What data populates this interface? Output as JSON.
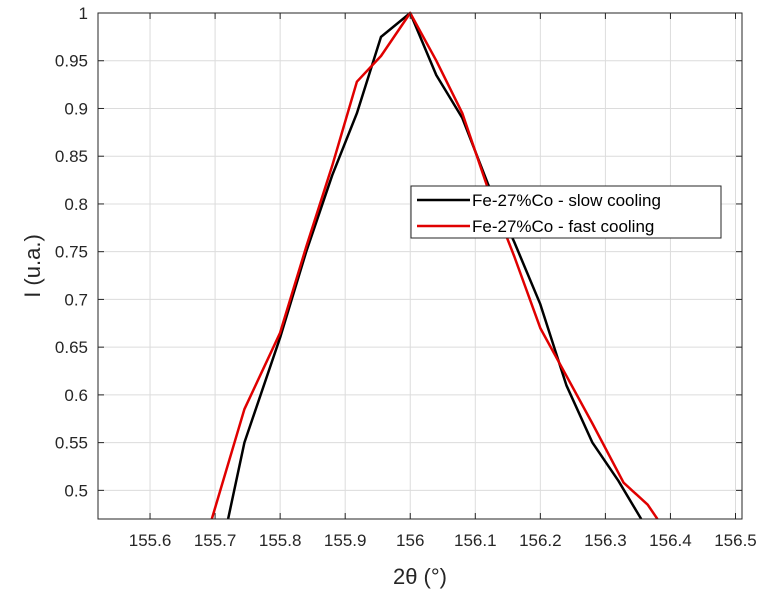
{
  "chart_data": {
    "type": "line",
    "xlabel": "2θ (°)",
    "ylabel": "I (u.a.)",
    "xlim": [
      155.52,
      156.51
    ],
    "ylim": [
      0.47,
      1.0
    ],
    "grid": true,
    "legend_position": "right-middle",
    "x_ticks": [
      "155.6",
      "155.7",
      "155.8",
      "155.9",
      "156",
      "156.1",
      "156.2",
      "156.3",
      "156.4",
      "156.5"
    ],
    "x_tick_values": [
      155.6,
      155.7,
      155.8,
      155.9,
      156.0,
      156.1,
      156.2,
      156.3,
      156.4,
      156.5
    ],
    "y_ticks": [
      "0.5",
      "0.55",
      "0.6",
      "0.65",
      "0.7",
      "0.75",
      "0.8",
      "0.85",
      "0.9",
      "0.95",
      "1"
    ],
    "y_tick_values": [
      0.5,
      0.55,
      0.6,
      0.65,
      0.7,
      0.75,
      0.8,
      0.85,
      0.9,
      0.95,
      1.0
    ],
    "series": [
      {
        "name": "Fe-27%Co - slow cooling",
        "color": "#000000",
        "x": [
          155.72,
          155.745,
          155.8,
          155.84,
          155.88,
          155.918,
          155.955,
          156.0,
          156.04,
          156.08,
          156.12,
          156.16,
          156.2,
          156.24,
          156.28,
          156.32,
          156.355
        ],
        "y": [
          0.47,
          0.55,
          0.66,
          0.75,
          0.83,
          0.895,
          0.975,
          1.0,
          0.935,
          0.89,
          0.82,
          0.76,
          0.695,
          0.61,
          0.55,
          0.51,
          0.47
        ]
      },
      {
        "name": "Fe-27%Co - fast cooling",
        "color": "#e00000",
        "x": [
          155.695,
          155.745,
          155.8,
          155.84,
          155.88,
          155.918,
          155.955,
          156.0,
          156.04,
          156.08,
          156.12,
          156.16,
          156.2,
          156.24,
          156.28,
          156.328,
          156.365,
          156.38
        ],
        "y": [
          0.47,
          0.585,
          0.665,
          0.755,
          0.84,
          0.928,
          0.955,
          1.0,
          0.95,
          0.895,
          0.815,
          0.745,
          0.67,
          0.62,
          0.57,
          0.508,
          0.485,
          0.47
        ]
      }
    ]
  }
}
